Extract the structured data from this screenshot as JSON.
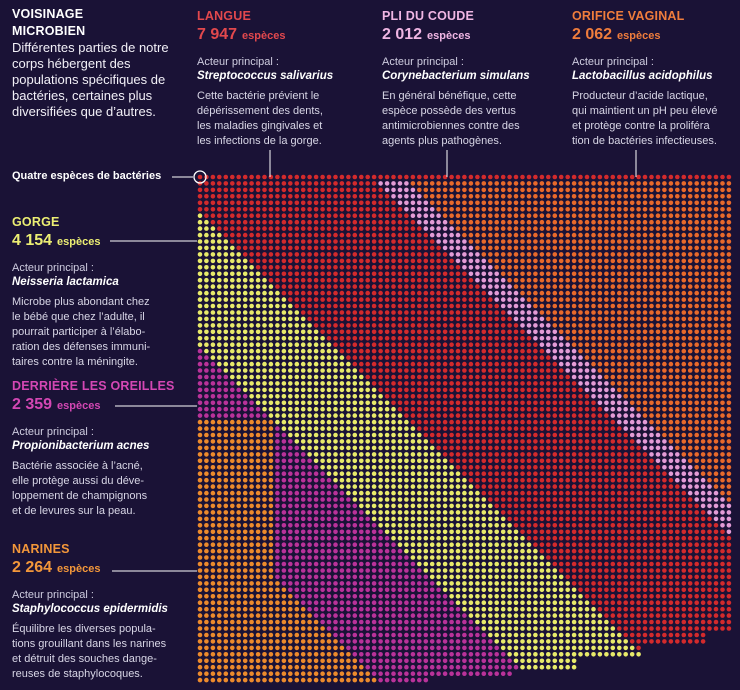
{
  "intro": {
    "title": "VOISINAGE\nMICROBIEN",
    "text": "Différentes parties de notre corps hébergent des populations spécifiques de bactéries, certaines plus diversifiées que d’autres."
  },
  "legend": {
    "label": "Quatre espèces de bactéries",
    "color": "#ffffff"
  },
  "unit": "espèces",
  "actor_label": "Acteur principal :",
  "colors": {
    "background": "#1a1236",
    "langue": "#d32a2c",
    "pli_du_coude": "#e39bd6",
    "orifice_vaginal": "#e8692b",
    "gorge": "#e8ea6a",
    "derriere_les_oreilles": "#b9329a",
    "narines": "#ec8a2c",
    "faint_dot": "#241a44"
  },
  "regions": {
    "langue": {
      "name": "LANGUE",
      "count": "7 947",
      "actor": "Streptococcus salivarius",
      "description": "Cette bactérie prévient le\ndépérissement des dents,\nles maladies gingivales et\nles infections de la gorge.",
      "color": "#d32a2c"
    },
    "pli_du_coude": {
      "name": "PLI DU COUDE",
      "count": "2 012",
      "actor": "Corynebacterium simulans",
      "description": "En général bénéfique, cette\nespèce possède des vertus\nantimicrobiennes contre des\nagents plus pathogènes.",
      "color": "#e39bd6"
    },
    "orifice_vaginal": {
      "name": "ORIFICE VAGINAL",
      "count": "2 062",
      "actor": "Lactobacillus acidophilus",
      "description": "Producteur d’acide lactique,\nqui maintient un pH peu élevé\net protège contre la prolifér­a\ntion de bactéries infectieuses.",
      "color": "#e8692b"
    },
    "gorge": {
      "name": "GORGE",
      "count": "4 154",
      "actor": "Neisseria lactamica",
      "description": "Microbe plus abondant chez\nle bébé que chez l’adulte, il\npourrait participer à l’élabo-\nration des défenses immuni-\ntaires contre la méningite.",
      "color": "#e8ea6a"
    },
    "derriere_les_oreilles": {
      "name": "DERRIÈRE LES OREILLES",
      "count": "2 359",
      "actor": "Propionibacterium acnes",
      "description": "Bactérie associée à l’acné,\nelle protège aussi du déve-\nloppement de champignons\net de levures sur la peau.",
      "color": "#b9329a"
    },
    "narines": {
      "name": "NARINES",
      "count": "2 264",
      "actor": "Staphylococcus epidermidis",
      "description": "Équilibre les diverses popula-\ntions grouillant dans les narines\net détruit des souches dange-\nreuses de staphylocoques.",
      "color": "#ec8a2c"
    }
  },
  "chart_data": {
    "type": "dot-matrix",
    "unit_note": "Quatre espèces de bactéries",
    "species_per_dot": 4,
    "series": [
      {
        "name": "LANGUE",
        "species": 7947
      },
      {
        "name": "PLI DU COUDE",
        "species": 2012
      },
      {
        "name": "ORIFICE VAGINAL",
        "species": 2062
      },
      {
        "name": "GORGE",
        "species": 4154
      },
      {
        "name": "DERRIÈRE LES OREILLES",
        "species": 2359
      },
      {
        "name": "NARINES",
        "species": 2264
      }
    ]
  }
}
